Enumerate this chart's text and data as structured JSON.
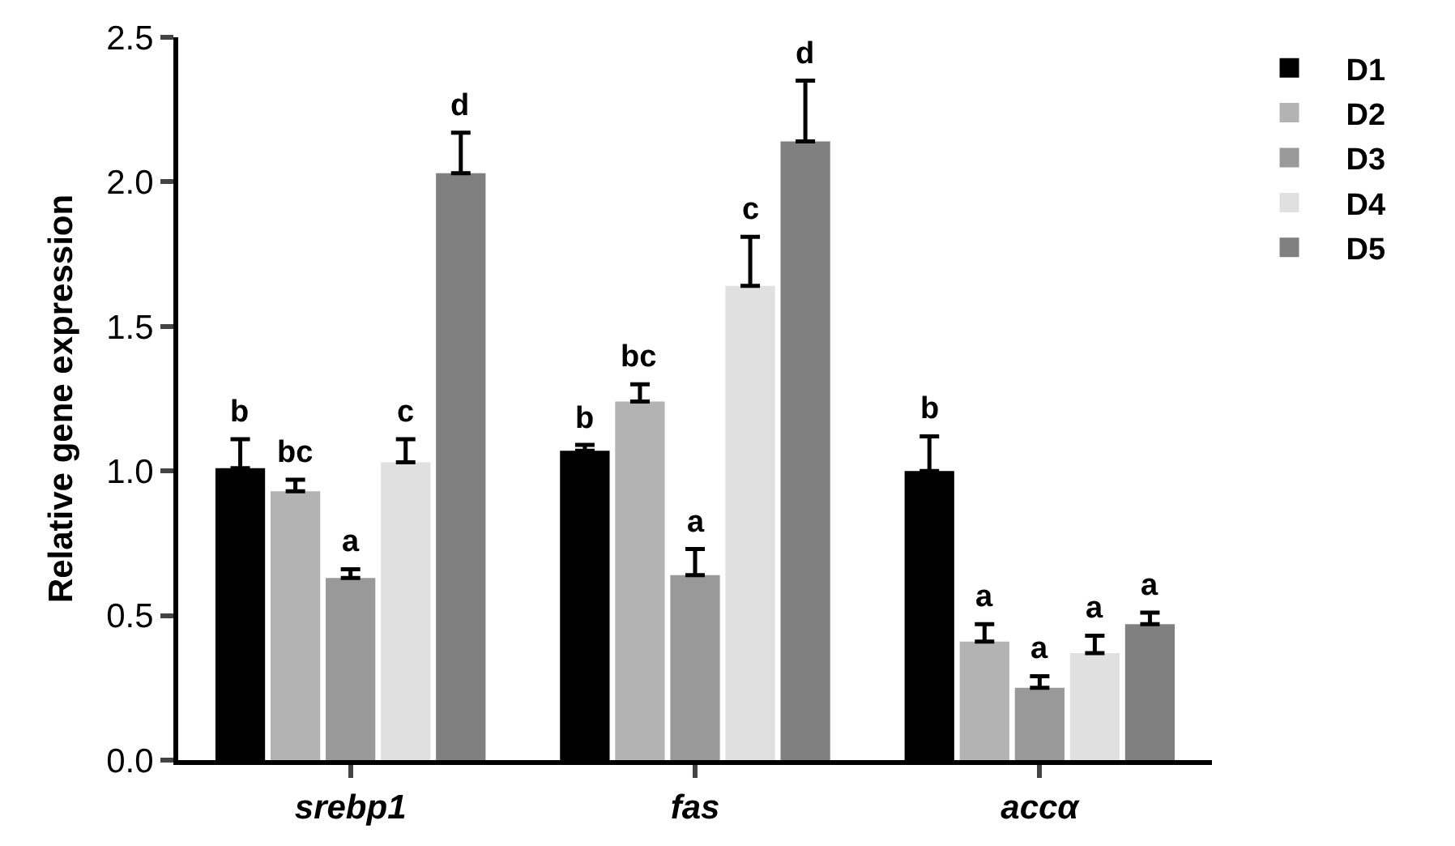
{
  "chart_data": {
    "type": "bar",
    "ylabel": "Relative gene expression",
    "categories": [
      "srebp1",
      "fas",
      "accα"
    ],
    "ylim": [
      0,
      2.5
    ],
    "yticks": [
      {
        "value": 0,
        "label": "0.0"
      },
      {
        "value": 0.5,
        "label": "0.5"
      },
      {
        "value": 1,
        "label": "1.0"
      },
      {
        "value": 1.5,
        "label": "1.5"
      },
      {
        "value": 2,
        "label": "2.0"
      },
      {
        "value": 2.5,
        "label": "2.5"
      }
    ],
    "legend": "top right",
    "series": [
      {
        "name": "D1",
        "color": "#000000",
        "values": [
          1.01,
          1.07,
          1.0
        ],
        "errors": [
          [
            1.01,
            1.11
          ],
          [
            1.07,
            1.09
          ],
          [
            1.0,
            1.12
          ]
        ],
        "value_labels": [
          "b",
          "b",
          "b"
        ]
      },
      {
        "name": "D2",
        "color": "#b3b3b3",
        "values": [
          0.93,
          1.24,
          0.41
        ],
        "errors": [
          [
            0.93,
            0.97
          ],
          [
            1.24,
            1.3
          ],
          [
            0.41,
            0.47
          ]
        ],
        "value_labels": [
          "bc",
          "bc",
          "a"
        ]
      },
      {
        "name": "D3",
        "color": "#999999",
        "values": [
          0.63,
          0.64,
          0.25
        ],
        "errors": [
          [
            0.63,
            0.66
          ],
          [
            0.64,
            0.73
          ],
          [
            0.25,
            0.29
          ]
        ],
        "value_labels": [
          "a",
          "a",
          "a"
        ]
      },
      {
        "name": "D4",
        "color": "#e0e0e0",
        "values": [
          1.03,
          1.64,
          0.37
        ],
        "errors": [
          [
            1.03,
            1.11
          ],
          [
            1.64,
            1.81
          ],
          [
            0.37,
            0.43
          ]
        ],
        "value_labels": [
          "c",
          "c",
          "a"
        ]
      },
      {
        "name": "D5",
        "color": "#808080",
        "values": [
          2.03,
          2.14,
          0.47
        ],
        "errors": [
          [
            2.03,
            2.17
          ],
          [
            2.14,
            2.35
          ],
          [
            0.47,
            0.51
          ]
        ],
        "value_labels": [
          "d",
          "d",
          "a"
        ]
      }
    ]
  }
}
